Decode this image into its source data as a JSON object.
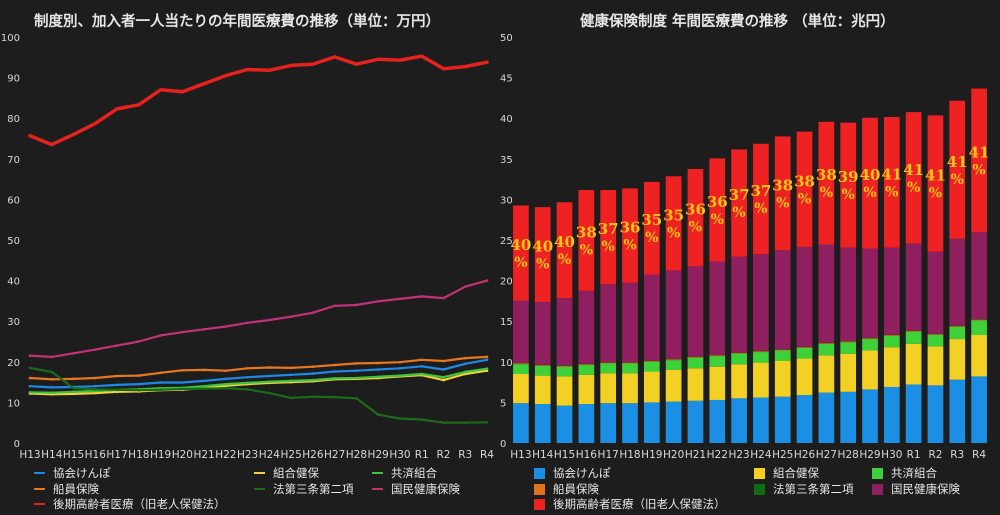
{
  "chart_data": [
    {
      "type": "line",
      "title": "制度別、加入者一人当たりの年間医療費の推移（単位：万円）",
      "categories": [
        "H13",
        "H14",
        "H15",
        "H16",
        "H17",
        "H18",
        "H19",
        "H20",
        "H21",
        "H22",
        "H23",
        "H24",
        "H25",
        "H26",
        "H27",
        "H28",
        "H29",
        "H30",
        "R1",
        "R2",
        "R3",
        "R4"
      ],
      "ylim": [
        0,
        100
      ],
      "yticks": [
        0,
        10,
        20,
        30,
        40,
        50,
        60,
        70,
        80,
        90,
        100
      ],
      "grid": false,
      "legend_position": "bottom",
      "series": [
        {
          "name": "協会けんぽ",
          "color": "#1e88e5",
          "values": [
            14,
            13.7,
            13.8,
            14,
            14.3,
            14.5,
            14.9,
            14.9,
            15.3,
            15.8,
            16.2,
            16.5,
            16.8,
            17.1,
            17.6,
            17.8,
            18.1,
            18.4,
            18.9,
            18.1,
            19.5,
            20.5
          ]
        },
        {
          "name": "組合健保",
          "color": "#f5d140",
          "values": [
            12.2,
            12.0,
            12.1,
            12.3,
            12.6,
            12.7,
            13.0,
            13.1,
            13.6,
            14.1,
            14.5,
            14.8,
            15.0,
            15.2,
            15.7,
            15.8,
            16.0,
            16.4,
            16.7,
            15.5,
            17.0,
            17.8
          ]
        },
        {
          "name": "共済組合",
          "color": "#3ec43e",
          "values": [
            12.5,
            12.4,
            12.6,
            12.8,
            13.1,
            13.2,
            13.5,
            13.6,
            14.0,
            14.5,
            14.8,
            15.1,
            15.3,
            15.5,
            15.9,
            16.0,
            16.3,
            16.6,
            17.0,
            16.2,
            17.5,
            18.3
          ]
        },
        {
          "name": "船員保険",
          "color": "#e87722",
          "values": [
            16,
            15.7,
            15.8,
            16,
            16.5,
            16.6,
            17.3,
            17.9,
            18.0,
            17.8,
            18.4,
            18.6,
            18.5,
            18.8,
            19.2,
            19.6,
            19.7,
            19.9,
            20.5,
            20.2,
            20.9,
            21.2
          ]
        },
        {
          "name": "法第三条第二項",
          "color": "#1a6b1a",
          "values": [
            18.5,
            17.5,
            13.5,
            13.2,
            13.1,
            13.0,
            13.1,
            13.3,
            13.4,
            13.5,
            13.2,
            12.3,
            11.1,
            11.4,
            11.3,
            11.0,
            7.0,
            6.0,
            5.8,
            5.0,
            5.0,
            5.1
          ]
        },
        {
          "name": "国民健康保険",
          "color": "#c2317a",
          "values": [
            21.5,
            21.2,
            22.1,
            23.0,
            24.0,
            25.0,
            26.5,
            27.3,
            28.0,
            28.7,
            29.6,
            30.3,
            31.1,
            32.1,
            33.8,
            34.0,
            34.9,
            35.5,
            36.1,
            35.7,
            38.5,
            40.0
          ]
        },
        {
          "name": "後期高齢者医療（旧老人保健法）",
          "color": "#e5221d",
          "values": [
            75.7,
            73.5,
            76.0,
            78.7,
            82.3,
            83.3,
            87.0,
            86.5,
            88.5,
            90.5,
            92.0,
            91.8,
            93.0,
            93.3,
            95.1,
            93.3,
            94.5,
            94.3,
            95.3,
            92.2,
            92.7,
            93.8
          ]
        }
      ],
      "legend_entries": [
        {
          "label": "協会けんぽ",
          "color": "#1e88e5"
        },
        {
          "label": "組合健保",
          "color": "#f5d140"
        },
        {
          "label": "共済組合",
          "color": "#3ec43e"
        },
        {
          "label": "船員保険",
          "color": "#e87722"
        },
        {
          "label": "法第三条第二項",
          "color": "#1a6b1a"
        },
        {
          "label": "国民健康保険",
          "color": "#c2317a"
        },
        {
          "label": "後期高齢者医療（旧老人保健法）",
          "color": "#e5221d"
        }
      ]
    },
    {
      "type": "bar",
      "stacked": true,
      "title": "健康保険制度 年間医療費の推移 （単位：兆円）",
      "categories": [
        "H13",
        "H14",
        "H15",
        "H16",
        "H17",
        "H18",
        "H19",
        "H20",
        "H21",
        "H22",
        "H23",
        "H24",
        "H25",
        "H26",
        "H27",
        "H28",
        "H29",
        "H30",
        "R1",
        "R2",
        "R3",
        "R4"
      ],
      "ylim": [
        0,
        50
      ],
      "yticks": [
        0,
        5,
        10,
        15,
        20,
        25,
        30,
        35,
        40,
        45,
        50
      ],
      "grid": false,
      "legend_position": "bottom",
      "series": [
        {
          "name": "協会けんぽ",
          "color": "#1a8fe3",
          "values": [
            4.9,
            4.8,
            4.6,
            4.8,
            4.9,
            4.9,
            5.0,
            5.1,
            5.2,
            5.3,
            5.5,
            5.6,
            5.7,
            5.9,
            6.2,
            6.3,
            6.6,
            6.9,
            7.2,
            7.1,
            7.8,
            8.2
          ]
        },
        {
          "name": "組合健保",
          "color": "#f2d024",
          "values": [
            3.6,
            3.5,
            3.6,
            3.6,
            3.7,
            3.7,
            3.8,
            3.9,
            4.0,
            4.1,
            4.2,
            4.3,
            4.4,
            4.5,
            4.6,
            4.7,
            4.8,
            4.9,
            5.0,
            4.8,
            5.0,
            5.1
          ]
        },
        {
          "name": "共済組合",
          "color": "#3fd13a",
          "values": [
            1.2,
            1.2,
            1.2,
            1.2,
            1.2,
            1.2,
            1.2,
            1.2,
            1.3,
            1.3,
            1.3,
            1.3,
            1.3,
            1.3,
            1.4,
            1.4,
            1.4,
            1.4,
            1.5,
            1.4,
            1.5,
            1.8
          ]
        },
        {
          "name": "船員保険",
          "color": "#e3721f",
          "values": [
            0.1,
            0.1,
            0.1,
            0.1,
            0.1,
            0.1,
            0.1,
            0.1,
            0.1,
            0.1,
            0.1,
            0.1,
            0.1,
            0.1,
            0.1,
            0.1,
            0.1,
            0.1,
            0.1,
            0.1,
            0.1,
            0.1
          ]
        },
        {
          "name": "法第三条第二項",
          "color": "#0f6b12",
          "values": [
            0.05,
            0.05,
            0.05,
            0.05,
            0.05,
            0.05,
            0.05,
            0.05,
            0.05,
            0.05,
            0.05,
            0.05,
            0.05,
            0.05,
            0.05,
            0.05,
            0.05,
            0.05,
            0.05,
            0.05,
            0.05,
            0.05
          ]
        },
        {
          "name": "国民健康保険",
          "color": "#8f1f5f",
          "values": [
            7.7,
            7.7,
            8.3,
            9.0,
            9.6,
            9.8,
            10.6,
            10.9,
            11.1,
            11.5,
            11.8,
            11.9,
            12.2,
            12.3,
            12.1,
            11.5,
            11.0,
            10.7,
            10.7,
            10.1,
            10.7,
            10.7
          ]
        },
        {
          "name": "後期高齢者医療（旧老人保健法）",
          "color": "#ee2222",
          "values": [
            11.7,
            11.7,
            11.8,
            12.4,
            11.6,
            11.6,
            11.4,
            11.6,
            12.0,
            12.7,
            13.2,
            13.6,
            14.0,
            14.2,
            15.1,
            15.4,
            16.1,
            16.1,
            16.2,
            16.8,
            17.0,
            17.7
          ]
        }
      ],
      "annotations": [
        "40%",
        "40%",
        "40%",
        "38%",
        "37%",
        "36%",
        "35%",
        "35%",
        "36%",
        "36%",
        "37%",
        "37%",
        "38%",
        "38%",
        "38%",
        "39%",
        "40%",
        "41%",
        "41%",
        "41%",
        "41%",
        "41%"
      ],
      "annotation_color": "#f5c518",
      "legend_entries": [
        {
          "label": "協会けんぽ",
          "color": "#1a8fe3"
        },
        {
          "label": "組合健保",
          "color": "#f2d024"
        },
        {
          "label": "共済組合",
          "color": "#3fd13a"
        },
        {
          "label": "船員保険",
          "color": "#e3721f"
        },
        {
          "label": "法第三条第二項",
          "color": "#0f6b12"
        },
        {
          "label": "国民健康保険",
          "color": "#8f1f5f"
        },
        {
          "label": "後期高齢者医療（旧老人保健法）",
          "color": "#ee2222"
        }
      ]
    }
  ]
}
